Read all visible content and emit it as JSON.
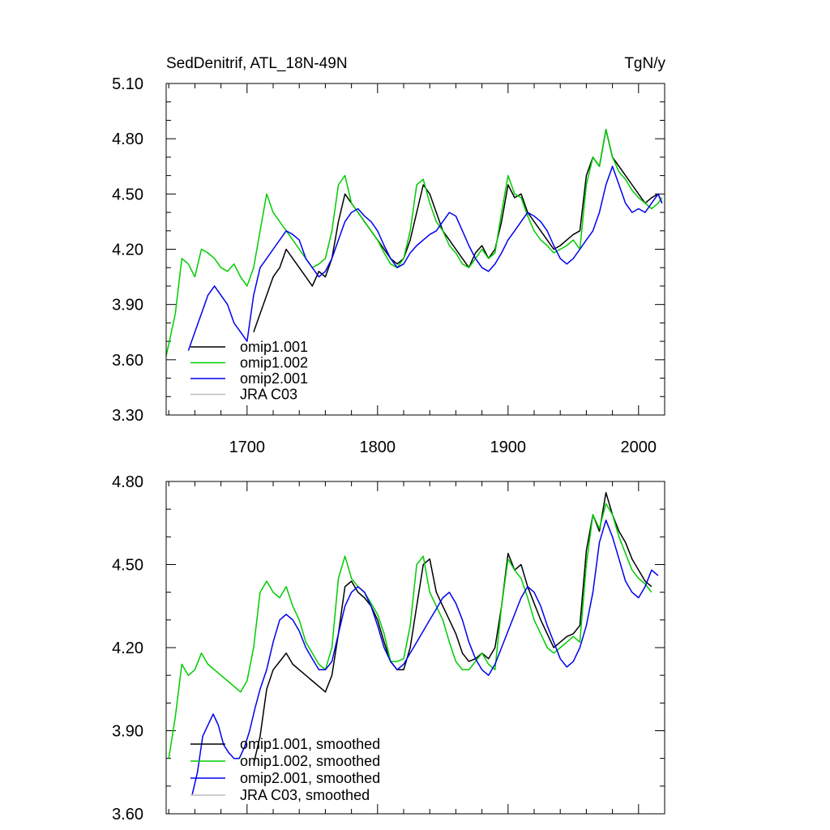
{
  "chart_data": [
    {
      "type": "line",
      "title_left": "SedDenitrif, ATL_18N-49N",
      "title_right": "TgN/y",
      "xlim": [
        1638,
        2020
      ],
      "ylim": [
        3.3,
        5.1
      ],
      "y_ticks": [
        "3.30",
        "3.60",
        "3.90",
        "4.20",
        "4.50",
        "4.80",
        "5.10"
      ],
      "y_tick_values": [
        3.3,
        3.6,
        3.9,
        4.2,
        4.5,
        4.8,
        5.1
      ],
      "x_ticks": [
        "1700",
        "1800",
        "1900",
        "2000"
      ],
      "x_tick_values": [
        1700,
        1800,
        1900,
        2000
      ],
      "legend_position": "lower-left",
      "series": [
        {
          "name": "omip1.001",
          "color": "#000000",
          "x": [
            1705,
            1710,
            1715,
            1720,
            1725,
            1730,
            1735,
            1740,
            1745,
            1750,
            1755,
            1760,
            1765,
            1770,
            1775,
            1780,
            1785,
            1790,
            1795,
            1800,
            1805,
            1810,
            1815,
            1820,
            1825,
            1830,
            1835,
            1840,
            1845,
            1850,
            1855,
            1860,
            1865,
            1870,
            1875,
            1880,
            1885,
            1890,
            1895,
            1900,
            1905,
            1910,
            1915,
            1920,
            1925,
            1930,
            1935,
            1940,
            1945,
            1950,
            1955,
            1960,
            1965,
            1970,
            1975,
            1980,
            1985,
            1990,
            1995,
            2000,
            2005,
            2010,
            2015,
            2018
          ],
          "y": [
            3.75,
            3.85,
            3.95,
            4.05,
            4.1,
            4.2,
            4.15,
            4.1,
            4.05,
            4.0,
            4.08,
            4.05,
            4.15,
            4.35,
            4.5,
            4.45,
            4.4,
            4.35,
            4.3,
            4.25,
            4.2,
            4.15,
            4.12,
            4.15,
            4.25,
            4.4,
            4.55,
            4.5,
            4.4,
            4.3,
            4.25,
            4.2,
            4.15,
            4.1,
            4.18,
            4.22,
            4.15,
            4.2,
            4.35,
            4.55,
            4.48,
            4.5,
            4.4,
            4.35,
            4.3,
            4.25,
            4.2,
            4.22,
            4.25,
            4.28,
            4.3,
            4.6,
            4.7,
            4.65,
            4.85,
            4.7,
            4.65,
            4.6,
            4.55,
            4.5,
            4.45,
            4.48,
            4.5,
            4.45
          ]
        },
        {
          "name": "omip1.002",
          "color": "#00cc00",
          "x": [
            1638,
            1645,
            1650,
            1655,
            1660,
            1665,
            1670,
            1675,
            1680,
            1685,
            1690,
            1695,
            1700,
            1705,
            1710,
            1715,
            1720,
            1725,
            1730,
            1735,
            1740,
            1745,
            1750,
            1755,
            1760,
            1765,
            1770,
            1775,
            1780,
            1785,
            1790,
            1795,
            1800,
            1805,
            1810,
            1815,
            1820,
            1825,
            1830,
            1835,
            1840,
            1845,
            1850,
            1855,
            1860,
            1865,
            1870,
            1875,
            1880,
            1885,
            1890,
            1895,
            1900,
            1905,
            1910,
            1915,
            1920,
            1925,
            1930,
            1935,
            1940,
            1945,
            1950,
            1955,
            1960,
            1965,
            1970,
            1975,
            1980,
            1985,
            1990,
            1995,
            2000,
            2005,
            2010,
            2015,
            2018
          ],
          "y": [
            3.62,
            3.85,
            4.15,
            4.12,
            4.05,
            4.2,
            4.18,
            4.15,
            4.1,
            4.08,
            4.12,
            4.05,
            4.0,
            4.1,
            4.3,
            4.5,
            4.4,
            4.35,
            4.3,
            4.25,
            4.2,
            4.15,
            4.1,
            4.12,
            4.15,
            4.3,
            4.55,
            4.6,
            4.45,
            4.4,
            4.35,
            4.3,
            4.25,
            4.18,
            4.12,
            4.1,
            4.15,
            4.3,
            4.55,
            4.58,
            4.45,
            4.35,
            4.3,
            4.22,
            4.18,
            4.12,
            4.1,
            4.15,
            4.2,
            4.15,
            4.18,
            4.4,
            4.6,
            4.5,
            4.48,
            4.38,
            4.3,
            4.25,
            4.22,
            4.18,
            4.2,
            4.22,
            4.25,
            4.2,
            4.55,
            4.7,
            4.65,
            4.85,
            4.7,
            4.62,
            4.58,
            4.52,
            4.48,
            4.45,
            4.42,
            4.45,
            4.48
          ]
        },
        {
          "name": "omip2.001",
          "color": "#0000ee",
          "x": [
            1655,
            1660,
            1665,
            1670,
            1675,
            1680,
            1685,
            1690,
            1695,
            1700,
            1705,
            1710,
            1715,
            1720,
            1725,
            1730,
            1735,
            1740,
            1745,
            1750,
            1755,
            1760,
            1765,
            1770,
            1775,
            1780,
            1785,
            1790,
            1795,
            1800,
            1805,
            1810,
            1815,
            1820,
            1825,
            1830,
            1835,
            1840,
            1845,
            1850,
            1855,
            1860,
            1865,
            1870,
            1875,
            1880,
            1885,
            1890,
            1895,
            1900,
            1905,
            1910,
            1915,
            1920,
            1925,
            1930,
            1935,
            1940,
            1945,
            1950,
            1955,
            1960,
            1965,
            1970,
            1975,
            1980,
            1985,
            1990,
            1995,
            2000,
            2005,
            2010,
            2015,
            2018
          ],
          "y": [
            3.65,
            3.75,
            3.85,
            3.95,
            4.0,
            3.95,
            3.9,
            3.8,
            3.75,
            3.7,
            3.95,
            4.1,
            4.15,
            4.2,
            4.25,
            4.3,
            4.28,
            4.25,
            4.15,
            4.1,
            4.05,
            4.08,
            4.15,
            4.25,
            4.35,
            4.4,
            4.42,
            4.38,
            4.35,
            4.3,
            4.22,
            4.15,
            4.1,
            4.12,
            4.18,
            4.22,
            4.25,
            4.28,
            4.3,
            4.35,
            4.4,
            4.38,
            4.3,
            4.22,
            4.15,
            4.1,
            4.08,
            4.12,
            4.18,
            4.25,
            4.3,
            4.35,
            4.4,
            4.38,
            4.35,
            4.3,
            4.22,
            4.15,
            4.12,
            4.15,
            4.2,
            4.25,
            4.3,
            4.4,
            4.55,
            4.65,
            4.55,
            4.45,
            4.4,
            4.42,
            4.4,
            4.45,
            4.5,
            4.45
          ]
        },
        {
          "name": "JRA C03",
          "color": "#bbbbbb",
          "x": [],
          "y": []
        }
      ]
    },
    {
      "type": "line",
      "xlim": [
        1638,
        2020
      ],
      "ylim": [
        3.6,
        4.8
      ],
      "y_ticks": [
        "3.60",
        "3.90",
        "4.20",
        "4.50",
        "4.80"
      ],
      "y_tick_values": [
        3.6,
        3.9,
        4.2,
        4.5,
        4.8
      ],
      "legend_position": "lower-left",
      "series": [
        {
          "name": "omip1.001, smoothed",
          "color": "#000000",
          "x": [
            1705,
            1710,
            1715,
            1720,
            1725,
            1730,
            1735,
            1740,
            1745,
            1750,
            1755,
            1760,
            1765,
            1770,
            1775,
            1780,
            1785,
            1790,
            1795,
            1800,
            1805,
            1810,
            1815,
            1820,
            1825,
            1830,
            1835,
            1840,
            1845,
            1850,
            1855,
            1860,
            1865,
            1870,
            1875,
            1880,
            1885,
            1890,
            1895,
            1900,
            1905,
            1910,
            1915,
            1920,
            1925,
            1930,
            1935,
            1940,
            1945,
            1950,
            1955,
            1960,
            1965,
            1970,
            1975,
            1980,
            1985,
            1990,
            1995,
            2000,
            2005,
            2010
          ],
          "y": [
            3.78,
            3.88,
            4.05,
            4.12,
            4.15,
            4.18,
            4.14,
            4.12,
            4.1,
            4.08,
            4.06,
            4.04,
            4.1,
            4.25,
            4.42,
            4.44,
            4.4,
            4.38,
            4.35,
            4.3,
            4.22,
            4.15,
            4.12,
            4.12,
            4.2,
            4.35,
            4.5,
            4.52,
            4.4,
            4.35,
            4.3,
            4.25,
            4.18,
            4.15,
            4.16,
            4.18,
            4.16,
            4.2,
            4.35,
            4.54,
            4.48,
            4.5,
            4.42,
            4.36,
            4.3,
            4.25,
            4.2,
            4.22,
            4.24,
            4.25,
            4.28,
            4.55,
            4.68,
            4.62,
            4.76,
            4.68,
            4.62,
            4.58,
            4.52,
            4.48,
            4.44,
            4.42
          ]
        },
        {
          "name": "omip1.002, smoothed",
          "color": "#00cc00",
          "x": [
            1640,
            1645,
            1650,
            1655,
            1660,
            1665,
            1670,
            1675,
            1680,
            1685,
            1690,
            1695,
            1700,
            1705,
            1710,
            1715,
            1720,
            1725,
            1730,
            1735,
            1740,
            1745,
            1750,
            1755,
            1760,
            1765,
            1770,
            1775,
            1780,
            1785,
            1790,
            1795,
            1800,
            1805,
            1810,
            1815,
            1820,
            1825,
            1830,
            1835,
            1840,
            1845,
            1850,
            1855,
            1860,
            1865,
            1870,
            1875,
            1880,
            1885,
            1890,
            1895,
            1900,
            1905,
            1910,
            1915,
            1920,
            1925,
            1930,
            1935,
            1940,
            1945,
            1950,
            1955,
            1960,
            1965,
            1970,
            1975,
            1980,
            1985,
            1990,
            1995,
            2000,
            2005,
            2010
          ],
          "y": [
            3.8,
            3.95,
            4.14,
            4.1,
            4.12,
            4.18,
            4.14,
            4.12,
            4.1,
            4.08,
            4.06,
            4.04,
            4.08,
            4.2,
            4.4,
            4.44,
            4.4,
            4.38,
            4.42,
            4.35,
            4.3,
            4.22,
            4.18,
            4.14,
            4.12,
            4.2,
            4.45,
            4.53,
            4.45,
            4.42,
            4.4,
            4.36,
            4.32,
            4.25,
            4.15,
            4.15,
            4.16,
            4.28,
            4.5,
            4.53,
            4.4,
            4.35,
            4.3,
            4.22,
            4.15,
            4.12,
            4.12,
            4.15,
            4.18,
            4.14,
            4.12,
            4.35,
            4.52,
            4.48,
            4.45,
            4.38,
            4.3,
            4.25,
            4.2,
            4.18,
            4.2,
            4.22,
            4.24,
            4.22,
            4.5,
            4.68,
            4.63,
            4.72,
            4.68,
            4.6,
            4.54,
            4.48,
            4.45,
            4.43,
            4.4
          ]
        },
        {
          "name": "omip2.001, smoothed",
          "color": "#0000ee",
          "x": [
            1658,
            1662,
            1666,
            1670,
            1674,
            1678,
            1682,
            1686,
            1690,
            1694,
            1698,
            1702,
            1706,
            1710,
            1715,
            1720,
            1725,
            1730,
            1735,
            1740,
            1745,
            1750,
            1755,
            1760,
            1765,
            1770,
            1775,
            1780,
            1785,
            1790,
            1795,
            1800,
            1805,
            1810,
            1815,
            1820,
            1825,
            1830,
            1835,
            1840,
            1845,
            1850,
            1855,
            1860,
            1865,
            1870,
            1875,
            1880,
            1885,
            1890,
            1895,
            1900,
            1905,
            1910,
            1915,
            1920,
            1925,
            1930,
            1935,
            1940,
            1945,
            1950,
            1955,
            1960,
            1965,
            1970,
            1975,
            1980,
            1985,
            1990,
            1995,
            2000,
            2005,
            2010,
            2015
          ],
          "y": [
            3.67,
            3.75,
            3.88,
            3.92,
            3.96,
            3.92,
            3.85,
            3.82,
            3.8,
            3.8,
            3.84,
            3.9,
            3.98,
            4.05,
            4.12,
            4.22,
            4.3,
            4.32,
            4.3,
            4.26,
            4.2,
            4.16,
            4.12,
            4.12,
            4.15,
            4.25,
            4.35,
            4.4,
            4.42,
            4.4,
            4.35,
            4.28,
            4.2,
            4.15,
            4.12,
            4.14,
            4.18,
            4.22,
            4.26,
            4.3,
            4.34,
            4.38,
            4.4,
            4.36,
            4.3,
            4.22,
            4.16,
            4.12,
            4.1,
            4.14,
            4.2,
            4.26,
            4.32,
            4.38,
            4.42,
            4.4,
            4.35,
            4.28,
            4.22,
            4.16,
            4.13,
            4.15,
            4.2,
            4.28,
            4.4,
            4.58,
            4.66,
            4.6,
            4.52,
            4.44,
            4.4,
            4.38,
            4.42,
            4.48,
            4.46
          ]
        },
        {
          "name": "JRA C03, smoothed",
          "color": "#bbbbbb",
          "x": [],
          "y": []
        }
      ]
    }
  ]
}
